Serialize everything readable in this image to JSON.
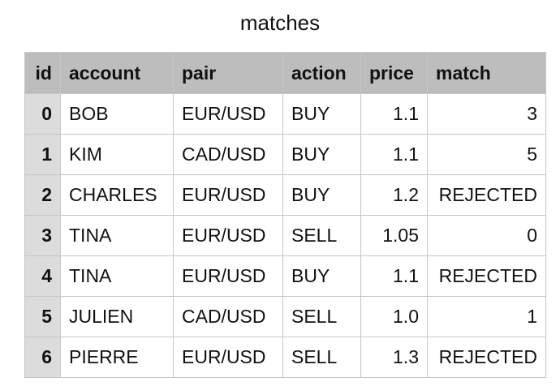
{
  "title": "matches",
  "columns": [
    "id",
    "account",
    "pair",
    "action",
    "price",
    "match"
  ],
  "rows": [
    {
      "id": "0",
      "account": "BOB",
      "pair": "EUR/USD",
      "action": "BUY",
      "price": "1.1",
      "match": "3"
    },
    {
      "id": "1",
      "account": "KIM",
      "pair": "CAD/USD",
      "action": "BUY",
      "price": "1.1",
      "match": "5"
    },
    {
      "id": "2",
      "account": "CHARLES",
      "pair": "EUR/USD",
      "action": "BUY",
      "price": "1.2",
      "match": "REJECTED"
    },
    {
      "id": "3",
      "account": "TINA",
      "pair": "EUR/USD",
      "action": "SELL",
      "price": "1.05",
      "match": "0"
    },
    {
      "id": "4",
      "account": "TINA",
      "pair": "EUR/USD",
      "action": "BUY",
      "price": "1.1",
      "match": "REJECTED"
    },
    {
      "id": "5",
      "account": "JULIEN",
      "pair": "CAD/USD",
      "action": "SELL",
      "price": "1.0",
      "match": "1"
    },
    {
      "id": "6",
      "account": "PIERRE",
      "pair": "EUR/USD",
      "action": "SELL",
      "price": "1.3",
      "match": "REJECTED"
    }
  ],
  "colors": {
    "header_background": "#bdbdbd",
    "index_background": "#dcdcdc",
    "grid_line": "#c6c6c6"
  }
}
